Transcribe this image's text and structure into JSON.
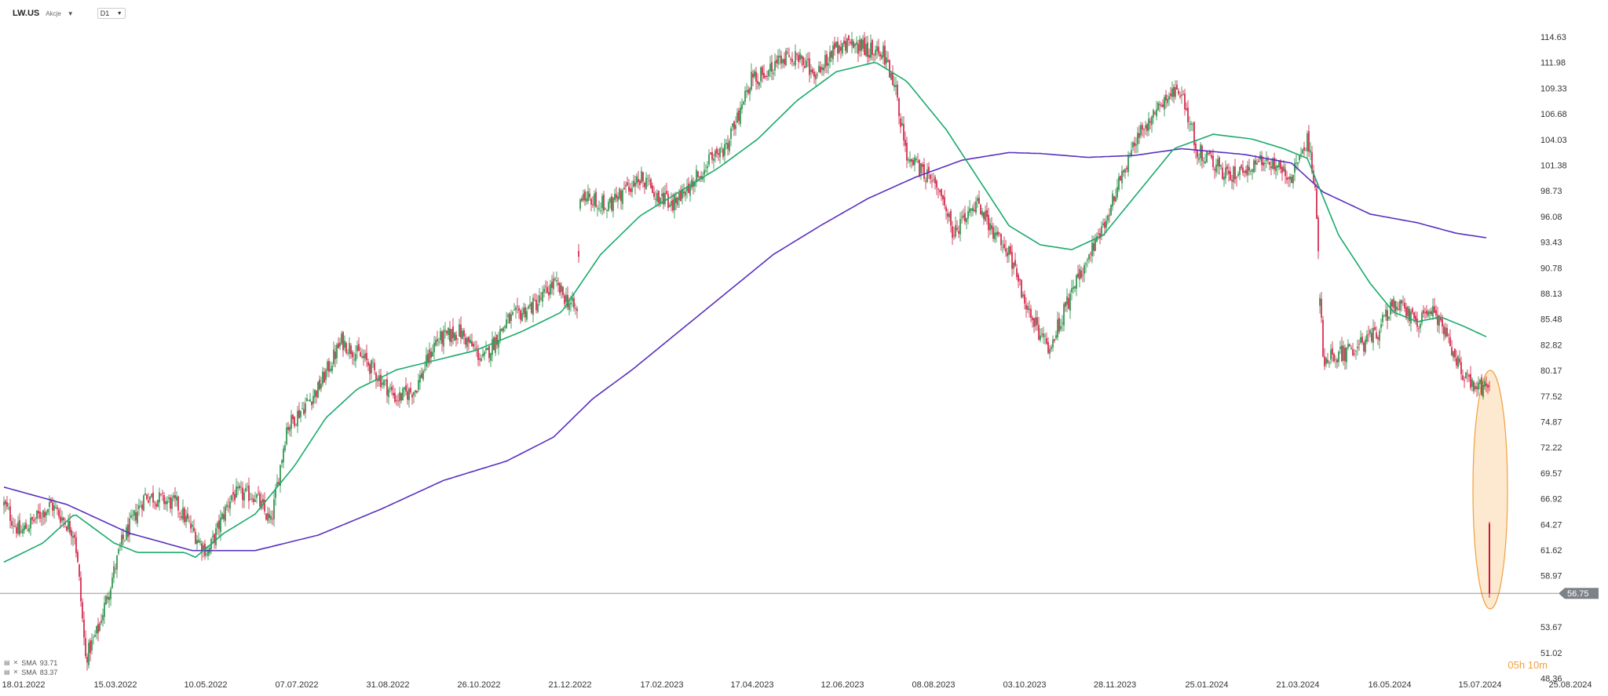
{
  "header": {
    "symbol": "LW.US",
    "symbol_type": "Akcje",
    "timeframe": "D1"
  },
  "legend": [
    {
      "name": "SMA",
      "value": "93.71",
      "color": "#5b2fbf"
    },
    {
      "name": "SMA",
      "value": "83.37",
      "color": "#1aaa6a"
    }
  ],
  "countdown": "05h 10m",
  "current_price": "56.75",
  "colors": {
    "up": "#1e8a3c",
    "down": "#d0143c",
    "sma_long": "#5b2fbf",
    "sma_short": "#1aaa6a",
    "price_line": "#888888",
    "badge": "#7d8288",
    "highlight_fill": "#fde4c4",
    "highlight_stroke": "#f0a040"
  },
  "chart_data": {
    "type": "candlestick",
    "x_labels": [
      "18.01.2022",
      "15.03.2022",
      "10.05.2022",
      "07.07.2022",
      "31.08.2022",
      "26.10.2022",
      "21.12.2022",
      "17.02.2023",
      "17.04.2023",
      "12.06.2023",
      "08.08.2023",
      "03.10.2023",
      "28.11.2023",
      "25.01.2024",
      "21.03.2024",
      "16.05.2024",
      "15.07.2024",
      "25.08.2024"
    ],
    "y_ticks": [
      "114.63",
      "111.98",
      "109.33",
      "106.68",
      "104.03",
      "101.38",
      "98.73",
      "96.08",
      "93.43",
      "90.78",
      "88.13",
      "85.48",
      "82.82",
      "80.17",
      "77.52",
      "74.87",
      "72.22",
      "69.57",
      "66.92",
      "64.27",
      "61.62",
      "58.97",
      "56.75",
      "53.67",
      "51.02",
      "48.36"
    ],
    "ylim": [
      48.36,
      114.63
    ],
    "price_anchors": [
      [
        0,
        66
      ],
      [
        10,
        63
      ],
      [
        30,
        66
      ],
      [
        45,
        63
      ],
      [
        48,
        58
      ],
      [
        52,
        50
      ],
      [
        60,
        53
      ],
      [
        75,
        62
      ],
      [
        90,
        67
      ],
      [
        110,
        66
      ],
      [
        125,
        62
      ],
      [
        130,
        61
      ],
      [
        145,
        67
      ],
      [
        160,
        67
      ],
      [
        170,
        64
      ],
      [
        180,
        74
      ],
      [
        200,
        78
      ],
      [
        215,
        83
      ],
      [
        230,
        81
      ],
      [
        240,
        79
      ],
      [
        250,
        77
      ],
      [
        262,
        78
      ],
      [
        275,
        83
      ],
      [
        290,
        84
      ],
      [
        305,
        81
      ],
      [
        320,
        85
      ],
      [
        340,
        87
      ],
      [
        350,
        89
      ],
      [
        365,
        86
      ],
      [
        367,
        98
      ],
      [
        385,
        97
      ],
      [
        405,
        100
      ],
      [
        425,
        97
      ],
      [
        445,
        101
      ],
      [
        460,
        103
      ],
      [
        475,
        110
      ],
      [
        500,
        113
      ],
      [
        515,
        111
      ],
      [
        535,
        114
      ],
      [
        560,
        113
      ],
      [
        568,
        109
      ],
      [
        575,
        102
      ],
      [
        595,
        99
      ],
      [
        605,
        94
      ],
      [
        620,
        97
      ],
      [
        640,
        92
      ],
      [
        650,
        87
      ],
      [
        665,
        82
      ],
      [
        680,
        88
      ],
      [
        695,
        93
      ],
      [
        705,
        97
      ],
      [
        720,
        104
      ],
      [
        740,
        108
      ],
      [
        750,
        109
      ],
      [
        760,
        103
      ],
      [
        780,
        100
      ],
      [
        800,
        102
      ],
      [
        820,
        100
      ],
      [
        830,
        104
      ],
      [
        835,
        99
      ],
      [
        840,
        81
      ],
      [
        860,
        82
      ],
      [
        875,
        84
      ],
      [
        885,
        87
      ],
      [
        900,
        85
      ],
      [
        910,
        86
      ],
      [
        920,
        83
      ],
      [
        930,
        79
      ],
      [
        945,
        78
      ]
    ],
    "last_candle": {
      "open": 64.0,
      "high": 64.2,
      "low": 56.3,
      "close": 56.75
    },
    "sma_long_anchors": [
      [
        0,
        67.8
      ],
      [
        40,
        66
      ],
      [
        80,
        63
      ],
      [
        120,
        61.2
      ],
      [
        160,
        61.2
      ],
      [
        200,
        62.8
      ],
      [
        240,
        65.5
      ],
      [
        280,
        68.5
      ],
      [
        320,
        70.5
      ],
      [
        350,
        73
      ],
      [
        375,
        77
      ],
      [
        400,
        80
      ],
      [
        430,
        84
      ],
      [
        460,
        88
      ],
      [
        490,
        92
      ],
      [
        520,
        95
      ],
      [
        550,
        97.8
      ],
      [
        580,
        100
      ],
      [
        610,
        101.8
      ],
      [
        640,
        102.6
      ],
      [
        660,
        102.5
      ],
      [
        690,
        102.1
      ],
      [
        720,
        102.3
      ],
      [
        750,
        103
      ],
      [
        790,
        102.4
      ],
      [
        820,
        101.5
      ],
      [
        840,
        98.5
      ],
      [
        870,
        96.2
      ],
      [
        900,
        95.3
      ],
      [
        925,
        94.2
      ],
      [
        945,
        93.71
      ]
    ],
    "sma_short_anchors": [
      [
        0,
        60
      ],
      [
        25,
        62
      ],
      [
        45,
        65
      ],
      [
        70,
        62
      ],
      [
        85,
        61
      ],
      [
        115,
        61
      ],
      [
        122,
        60.5
      ],
      [
        140,
        63
      ],
      [
        160,
        65
      ],
      [
        185,
        70
      ],
      [
        205,
        75
      ],
      [
        225,
        78
      ],
      [
        250,
        80
      ],
      [
        275,
        81
      ],
      [
        300,
        82
      ],
      [
        330,
        84
      ],
      [
        355,
        86
      ],
      [
        380,
        92
      ],
      [
        405,
        96
      ],
      [
        430,
        98.5
      ],
      [
        455,
        101
      ],
      [
        480,
        104
      ],
      [
        505,
        108
      ],
      [
        530,
        111
      ],
      [
        555,
        112
      ],
      [
        575,
        110
      ],
      [
        600,
        105
      ],
      [
        620,
        100
      ],
      [
        640,
        95
      ],
      [
        660,
        93
      ],
      [
        680,
        92.5
      ],
      [
        700,
        94
      ],
      [
        720,
        98
      ],
      [
        745,
        103
      ],
      [
        770,
        104.5
      ],
      [
        795,
        104
      ],
      [
        815,
        103
      ],
      [
        830,
        102
      ],
      [
        850,
        94
      ],
      [
        870,
        89
      ],
      [
        885,
        86
      ],
      [
        900,
        85
      ],
      [
        915,
        85.5
      ],
      [
        930,
        84.5
      ],
      [
        945,
        83.37
      ]
    ]
  }
}
